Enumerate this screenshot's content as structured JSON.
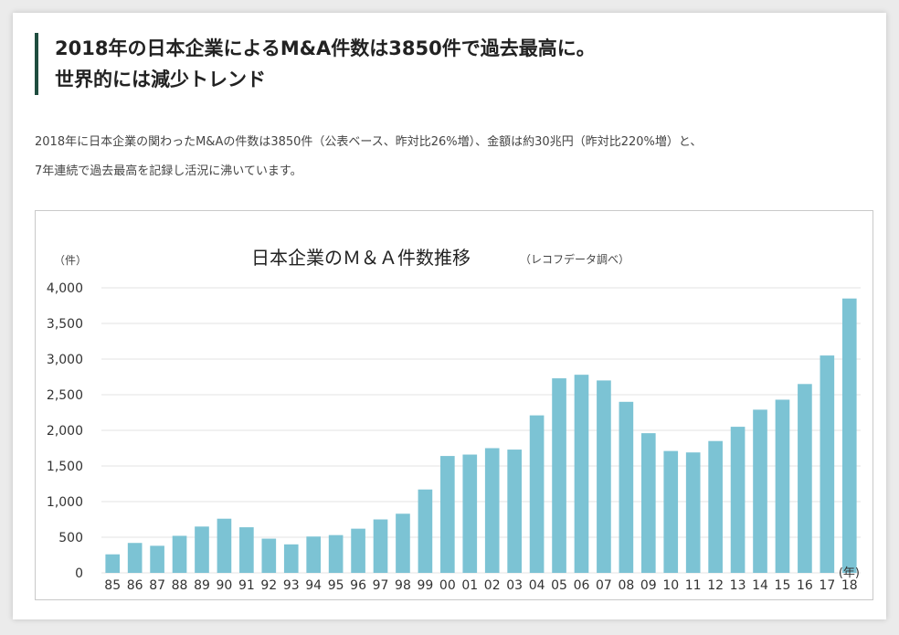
{
  "article": {
    "headline_line1": "2018年の日本企業によるM&A件数は3850件で過去最高に。",
    "headline_line2": "世界的には減少トレンド",
    "lead_line1": "2018年に日本企業の関わったM&Aの件数は3850件（公表ベース、昨対比26%増）、金額は約30兆円（昨対比220%増）と、",
    "lead_line2": "7年連続で過去最高を記録し活況に沸いています。"
  },
  "colors": {
    "bar": "#7cc3d4",
    "accent": "#1f4d3f",
    "grid": "#e3e3e3"
  },
  "chart_data": {
    "type": "bar",
    "title": "日本企業のＭ＆Ａ件数推移",
    "subtitle": "（レコフデータ調べ）",
    "y_unit_label": "（件）",
    "x_unit_label": "(年)",
    "ylim": [
      0,
      4000
    ],
    "y_ticks": [
      0,
      500,
      1000,
      1500,
      2000,
      2500,
      3000,
      3500,
      4000
    ],
    "y_tick_labels": [
      "0",
      "500",
      "1,000",
      "1,500",
      "2,000",
      "2,500",
      "3,000",
      "3,500",
      "4,000"
    ],
    "grid": true,
    "categories": [
      "85",
      "86",
      "87",
      "88",
      "89",
      "90",
      "91",
      "92",
      "93",
      "94",
      "95",
      "96",
      "97",
      "98",
      "99",
      "00",
      "01",
      "02",
      "03",
      "04",
      "05",
      "06",
      "07",
      "08",
      "09",
      "10",
      "11",
      "12",
      "13",
      "14",
      "15",
      "16",
      "17",
      "18"
    ],
    "values": [
      260,
      420,
      380,
      520,
      650,
      760,
      640,
      480,
      400,
      510,
      530,
      620,
      750,
      830,
      1170,
      1640,
      1660,
      1750,
      1730,
      2210,
      2730,
      2780,
      2700,
      2400,
      1960,
      1710,
      1690,
      1850,
      2050,
      2290,
      2430,
      2650,
      3050,
      3850
    ]
  }
}
